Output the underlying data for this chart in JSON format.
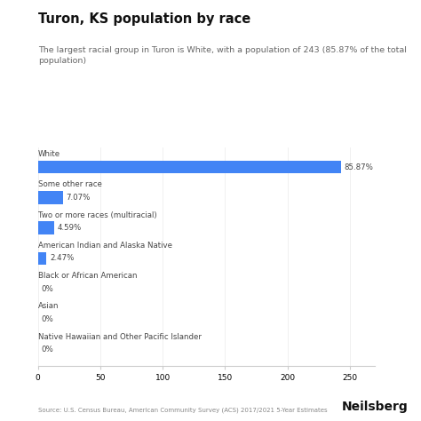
{
  "title": "Turon, KS population by race",
  "subtitle": "The largest racial group in Turon is White, with a population of 243 (85.87% of the total\npopulation)",
  "categories": [
    "White",
    "Some other race",
    "Two or more races (multiracial)",
    "American Indian and Alaska Native",
    "Black or African American",
    "Asian",
    "Native Hawaiian and Other Pacific Islander"
  ],
  "values": [
    243,
    20,
    13,
    7,
    0,
    0,
    0
  ],
  "percentages": [
    "85.87%",
    "7.07%",
    "4.59%",
    "2.47%",
    "0%",
    "0%",
    "0%"
  ],
  "bar_color": "#4284f5",
  "xlim": [
    0,
    270
  ],
  "xticks": [
    0,
    50,
    100,
    150,
    200,
    250
  ],
  "source": "Source: U.S. Census Bureau, American Community Survey (ACS) 2017/2021 5-Year Estimates",
  "brand": "Neilsberg",
  "bg_color": "#ffffff",
  "title_color": "#111111",
  "subtitle_color": "#666666",
  "pct_label_color": "#444444",
  "cat_label_color": "#444444",
  "axis_color": "#cccccc",
  "grid_color": "#eeeeee"
}
